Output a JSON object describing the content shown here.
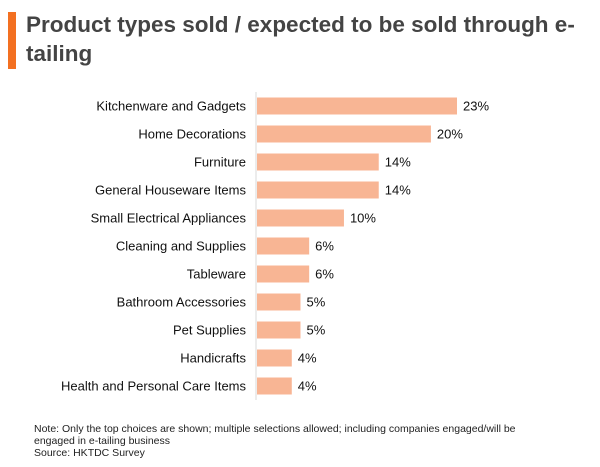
{
  "header": {
    "title": "Product types sold / expected to be sold through e-tailing"
  },
  "colors": {
    "accent": "#f37021",
    "bar": "#f8b594",
    "axis": "#d9d9d9"
  },
  "chart_data": {
    "type": "bar",
    "orientation": "horizontal",
    "title": "Product types sold / expected to be sold through e-tailing",
    "categories": [
      "Kitchenware and Gadgets",
      "Home Decorations",
      "Furniture",
      "General Houseware Items",
      "Small Electrical Appliances",
      "Cleaning and Supplies",
      "Tableware",
      "Bathroom Accessories",
      "Pet Supplies",
      "Handicrafts",
      "Health and Personal Care Items"
    ],
    "values": [
      23,
      20,
      14,
      14,
      10,
      6,
      6,
      5,
      5,
      4,
      4
    ],
    "value_labels": [
      "23%",
      "20%",
      "14%",
      "14%",
      "10%",
      "6%",
      "6%",
      "5%",
      "5%",
      "4%",
      "4%"
    ],
    "unit": "%",
    "xlabel": "",
    "ylabel": "",
    "xlim": [
      0,
      23
    ],
    "grid": false,
    "legend": "none"
  },
  "footer": {
    "note": "Note: Only the top choices are shown; multiple selections allowed; including companies engaged/will be engaged in e-tailing business",
    "source": "Source: HKTDC Survey"
  }
}
